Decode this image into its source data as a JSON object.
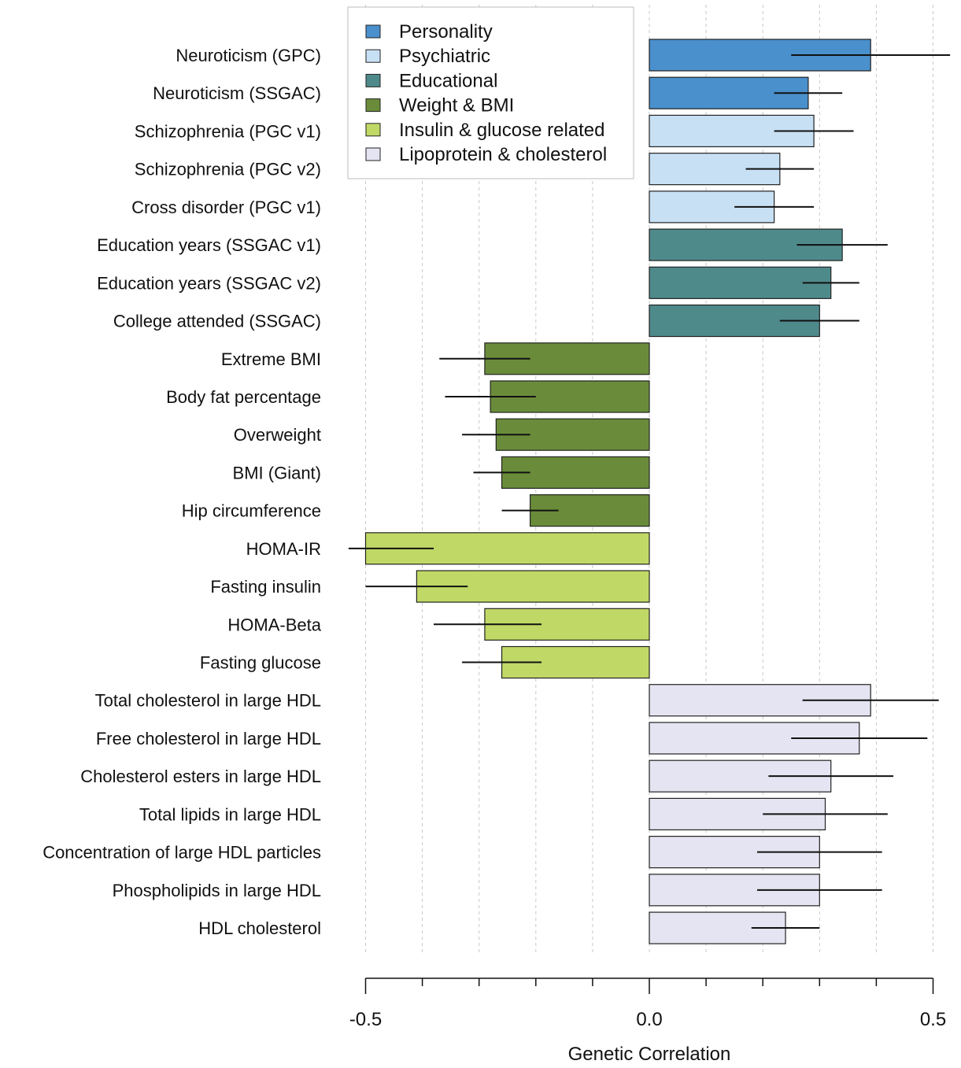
{
  "chart_data": {
    "type": "bar",
    "orientation": "horizontal",
    "xlabel": "Genetic Correlation",
    "xlim": [
      -0.5,
      0.5
    ],
    "x_ticks": [
      {
        "value": -0.5,
        "label": "-0.5"
      },
      {
        "value": 0.0,
        "label": "0.0"
      },
      {
        "value": 0.5,
        "label": "0.5"
      }
    ],
    "minor_ticks": [
      -0.4,
      -0.3,
      -0.2,
      -0.1,
      0.1,
      0.2,
      0.3,
      0.4
    ],
    "grid": "vertical dashed",
    "legend_position": "top-left",
    "legend": [
      {
        "group": "personality",
        "label": "Personality",
        "color": "#4a90cc"
      },
      {
        "group": "psychiatric",
        "label": "Psychiatric",
        "color": "#c8e0f4"
      },
      {
        "group": "educational",
        "label": "Educational",
        "color": "#4f8a8b"
      },
      {
        "group": "weight",
        "label": "Weight & BMI",
        "color": "#6a8c3a"
      },
      {
        "group": "insulin",
        "label": "Insulin & glucose related",
        "color": "#c0d966"
      },
      {
        "group": "lipoprotein",
        "label": "Lipoprotein & cholesterol",
        "color": "#e4e4f2"
      }
    ],
    "categories": [
      "Neuroticism (GPC)",
      "Neuroticism (SSGAC)",
      "Schizophrenia (PGC v1)",
      "Schizophrenia (PGC v2)",
      "Cross disorder (PGC v1)",
      "Education years (SSGAC v1)",
      "Education years (SSGAC v2)",
      "College attended (SSGAC)",
      "Extreme BMI",
      "Body fat percentage",
      "Overweight",
      "BMI (Giant)",
      "Hip circumference",
      "HOMA-IR",
      "Fasting insulin",
      "HOMA-Beta",
      "Fasting glucose",
      "Total cholesterol in large HDL",
      "Free cholesterol in large HDL",
      "Cholesterol esters in large HDL",
      "Total lipids in large HDL",
      "Concentration of large HDL particles",
      "Phospholipids in large HDL",
      "HDL cholesterol"
    ],
    "groups": [
      "personality",
      "personality",
      "psychiatric",
      "psychiatric",
      "psychiatric",
      "educational",
      "educational",
      "educational",
      "weight",
      "weight",
      "weight",
      "weight",
      "weight",
      "insulin",
      "insulin",
      "insulin",
      "insulin",
      "lipoprotein",
      "lipoprotein",
      "lipoprotein",
      "lipoprotein",
      "lipoprotein",
      "lipoprotein",
      "lipoprotein"
    ],
    "values": [
      0.39,
      0.28,
      0.29,
      0.23,
      0.22,
      0.34,
      0.32,
      0.3,
      -0.29,
      -0.28,
      -0.27,
      -0.26,
      -0.21,
      -0.5,
      -0.41,
      -0.29,
      -0.26,
      0.39,
      0.37,
      0.32,
      0.31,
      0.3,
      0.3,
      0.24
    ],
    "ci_low": [
      0.25,
      0.22,
      0.22,
      0.17,
      0.15,
      0.26,
      0.27,
      0.23,
      -0.37,
      -0.36,
      -0.33,
      -0.31,
      -0.26,
      -0.53,
      -0.5,
      -0.38,
      -0.33,
      0.27,
      0.25,
      0.21,
      0.2,
      0.19,
      0.19,
      0.18
    ],
    "ci_high": [
      0.53,
      0.34,
      0.36,
      0.29,
      0.29,
      0.42,
      0.37,
      0.37,
      -0.21,
      -0.2,
      -0.21,
      -0.21,
      -0.16,
      -0.38,
      -0.32,
      -0.19,
      -0.19,
      0.51,
      0.49,
      0.43,
      0.42,
      0.41,
      0.41,
      0.3
    ]
  }
}
